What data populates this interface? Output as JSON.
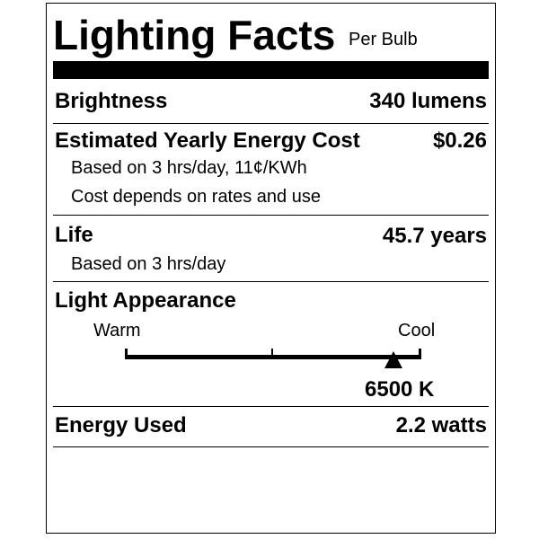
{
  "title": "Lighting Facts",
  "subtitle": "Per Bulb",
  "brightness": {
    "label": "Brightness",
    "value": "340 lumens"
  },
  "energy_cost": {
    "label": "Estimated Yearly Energy Cost",
    "value": "$0.26",
    "notes": [
      "Based on 3 hrs/day, 11¢/KWh",
      "Cost depends on rates and use"
    ]
  },
  "life": {
    "label": "Life",
    "value": "45.7 years",
    "note": "Based on 3 hrs/day"
  },
  "light_appearance": {
    "label": "Light Appearance",
    "warm_label": "Warm",
    "cool_label": "Cool",
    "value": "6500 K",
    "scale_position": 0.906
  },
  "energy_used": {
    "label": "Energy Used",
    "value": "2.2 watts"
  }
}
